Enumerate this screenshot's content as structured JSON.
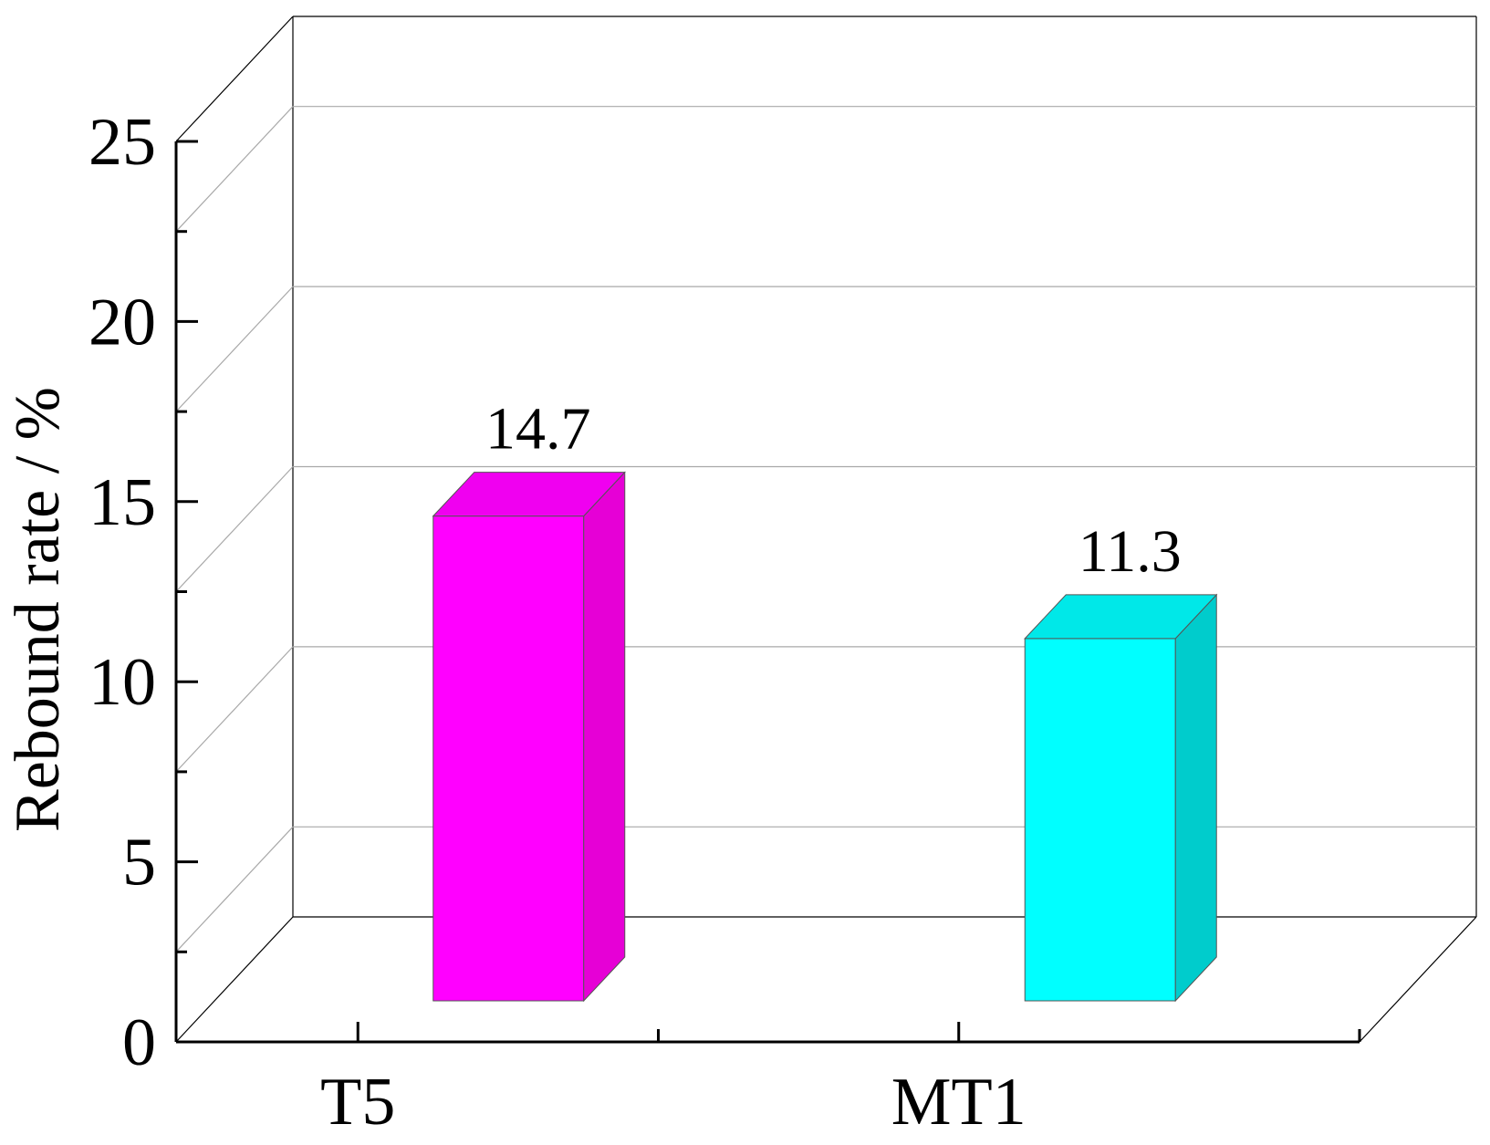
{
  "chart_data": {
    "type": "bar",
    "style": "3d",
    "title": "",
    "xlabel": "",
    "ylabel": "Rebound rate / %",
    "ylim": [
      0,
      25
    ],
    "yticks": [
      "0",
      "5",
      "10",
      "15",
      "20",
      "25"
    ],
    "grid": true,
    "categories": [
      "T5",
      "MT1"
    ],
    "series": [
      {
        "values": [
          14.7,
          11.3
        ],
        "data_labels": [
          "14.7",
          "11.3"
        ],
        "colors": [
          "#ff00ff",
          "#00ffff"
        ]
      }
    ]
  }
}
